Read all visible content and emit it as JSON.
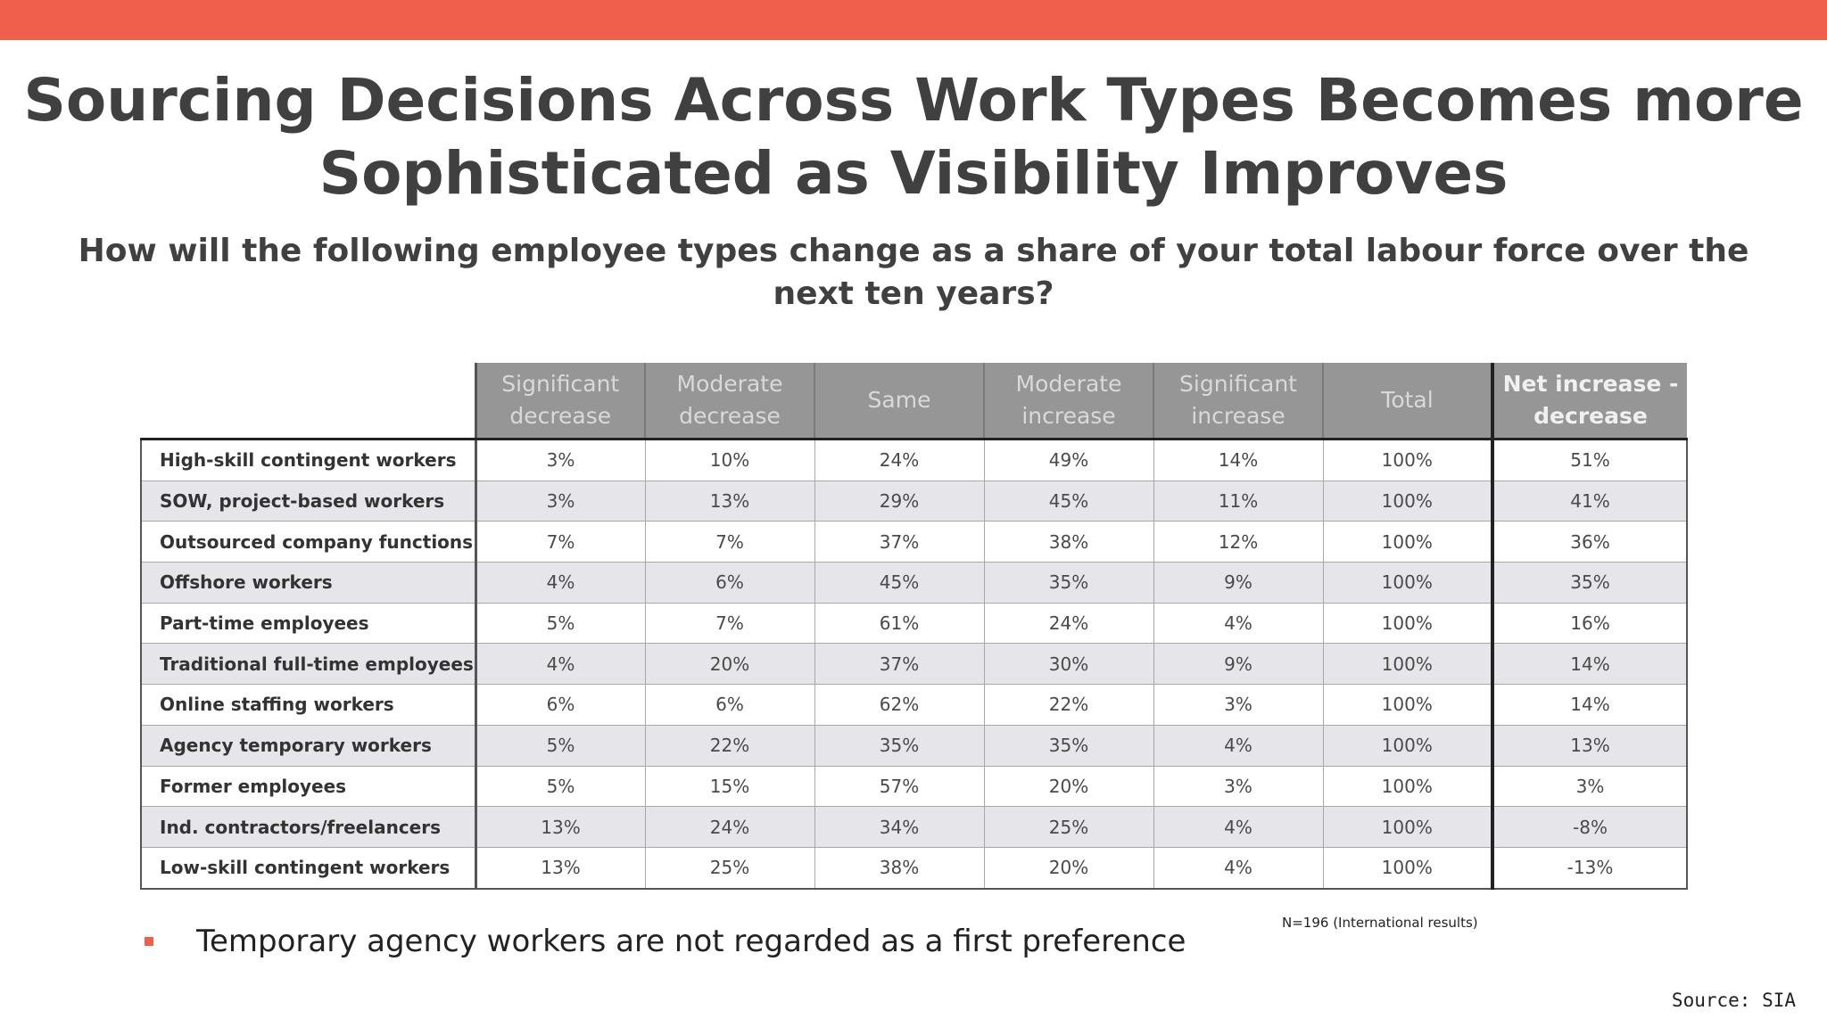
{
  "header": {
    "title_line1": "Sourcing Decisions Across Work Types Becomes more",
    "title_line2": "Sophisticated as Visibility Improves",
    "subtitle": "How will the following employee types change as a share of your total labour force over the next ten years?"
  },
  "colors": {
    "accent": "#f05f4b",
    "header_bg": "#969696",
    "row_alt_bg": "#e6e6ea"
  },
  "table": {
    "columns": [
      "Significant decrease",
      "Moderate decrease",
      "Same",
      "Moderate increase",
      "Significant increase",
      "Total",
      "Net increase - decrease"
    ],
    "rows": [
      {
        "label": "High-skill contingent workers",
        "values": [
          "3%",
          "10%",
          "24%",
          "49%",
          "14%",
          "100%",
          "51%"
        ]
      },
      {
        "label": "SOW, project-based workers",
        "values": [
          "3%",
          "13%",
          "29%",
          "45%",
          "11%",
          "100%",
          "41%"
        ]
      },
      {
        "label": "Outsourced company functions",
        "values": [
          "7%",
          "7%",
          "37%",
          "38%",
          "12%",
          "100%",
          "36%"
        ]
      },
      {
        "label": "Offshore workers",
        "values": [
          "4%",
          "6%",
          "45%",
          "35%",
          "9%",
          "100%",
          "35%"
        ]
      },
      {
        "label": "Part-time employees",
        "values": [
          "5%",
          "7%",
          "61%",
          "24%",
          "4%",
          "100%",
          "16%"
        ]
      },
      {
        "label": "Traditional full-time employees",
        "values": [
          "4%",
          "20%",
          "37%",
          "30%",
          "9%",
          "100%",
          "14%"
        ]
      },
      {
        "label": "Online staffing workers",
        "values": [
          "6%",
          "6%",
          "62%",
          "22%",
          "3%",
          "100%",
          "14%"
        ]
      },
      {
        "label": "Agency temporary workers",
        "values": [
          "5%",
          "22%",
          "35%",
          "35%",
          "4%",
          "100%",
          "13%"
        ]
      },
      {
        "label": "Former employees",
        "values": [
          "5%",
          "15%",
          "57%",
          "20%",
          "3%",
          "100%",
          "3%"
        ]
      },
      {
        "label": "Ind. contractors/freelancers",
        "values": [
          "13%",
          "24%",
          "34%",
          "25%",
          "4%",
          "100%",
          "-8%"
        ]
      },
      {
        "label": "Low-skill contingent workers",
        "values": [
          "13%",
          "25%",
          "38%",
          "20%",
          "4%",
          "100%",
          "-13%"
        ]
      }
    ]
  },
  "note": "N=196 (International results)",
  "bullet": "Temporary agency workers are not regarded as a first preference",
  "source": "Source: SIA"
}
